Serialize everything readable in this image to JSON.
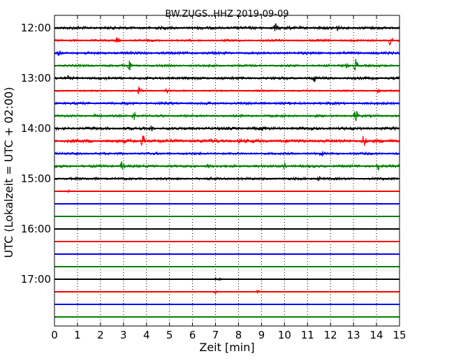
{
  "chart_data": {
    "type": "line",
    "title": "BW.ZUGS..HHZ 2019-09-09",
    "xlabel": "Zeit  [min]",
    "ylabel": "UTC (Lokalzeit = UTC + 02:00)",
    "xlim": [
      0,
      15
    ],
    "x_ticks": [
      "0",
      "1",
      "2",
      "3",
      "4",
      "5",
      "6",
      "7",
      "8",
      "9",
      "10",
      "11",
      "12",
      "13",
      "14",
      "15"
    ],
    "y_tick_labels": [
      "12:00",
      "13:00",
      "14:00",
      "15:00",
      "16:00",
      "17:00"
    ],
    "grid": "vertical dotted",
    "row_interval_minutes": 15,
    "colors": [
      "#000000",
      "#ff0000",
      "#0000ff",
      "#008000"
    ],
    "series": [
      {
        "start": "12:00",
        "noise": 2.2,
        "events": [
          [
            9.6,
            6
          ],
          [
            12.3,
            3
          ]
        ]
      },
      {
        "start": "12:15",
        "noise": 1.6,
        "events": [
          [
            2.75,
            9
          ],
          [
            14.6,
            9
          ]
        ]
      },
      {
        "start": "12:30",
        "noise": 2.0,
        "events": [
          [
            0.2,
            3
          ]
        ]
      },
      {
        "start": "12:45",
        "noise": 1.7,
        "events": [
          [
            3.25,
            7
          ],
          [
            13.1,
            10
          ],
          [
            12.7,
            3
          ]
        ]
      },
      {
        "start": "13:00",
        "noise": 2.0,
        "events": [
          [
            11.3,
            4
          ],
          [
            0.6,
            2
          ]
        ]
      },
      {
        "start": "13:15",
        "noise": 1.2,
        "events": [
          [
            3.7,
            8
          ],
          [
            4.9,
            3
          ],
          [
            14.1,
            3
          ]
        ]
      },
      {
        "start": "13:30",
        "noise": 1.9,
        "events": []
      },
      {
        "start": "13:45",
        "noise": 1.7,
        "events": [
          [
            3.45,
            7
          ],
          [
            13.1,
            9
          ],
          [
            1.8,
            3
          ]
        ]
      },
      {
        "start": "14:00",
        "noise": 2.2,
        "events": [
          [
            4.2,
            4
          ],
          [
            9.1,
            3
          ]
        ]
      },
      {
        "start": "14:15",
        "noise": 2.6,
        "events": [
          [
            3.85,
            8
          ],
          [
            13.45,
            9
          ],
          [
            8.1,
            3
          ]
        ]
      },
      {
        "start": "14:30",
        "noise": 1.8,
        "events": [
          [
            11.6,
            3
          ]
        ]
      },
      {
        "start": "14:45",
        "noise": 2.0,
        "events": [
          [
            2.95,
            8
          ],
          [
            14.05,
            9
          ],
          [
            10.0,
            4
          ],
          [
            6.7,
            3
          ]
        ]
      },
      {
        "start": "15:00",
        "noise": 1.8,
        "events": [
          [
            11.5,
            4
          ]
        ]
      },
      {
        "start": "15:15",
        "noise": 0.3,
        "events": [
          [
            0.6,
            2
          ]
        ]
      },
      {
        "start": "15:30",
        "noise": 0.3,
        "events": []
      },
      {
        "start": "15:45",
        "noise": 0.3,
        "events": []
      },
      {
        "start": "16:00",
        "noise": 0.3,
        "events": []
      },
      {
        "start": "16:15",
        "noise": 0.3,
        "events": []
      },
      {
        "start": "16:30",
        "noise": 0.3,
        "events": []
      },
      {
        "start": "16:45",
        "noise": 0.3,
        "events": []
      },
      {
        "start": "17:00",
        "noise": 0.3,
        "events": [
          [
            7.0,
            2
          ],
          [
            7.2,
            2
          ]
        ]
      },
      {
        "start": "17:15",
        "noise": 0.3,
        "events": [
          [
            7.0,
            3
          ],
          [
            8.85,
            3
          ]
        ]
      },
      {
        "start": "17:30",
        "noise": 0.3,
        "events": []
      },
      {
        "start": "17:45",
        "noise": 0.3,
        "events": []
      }
    ]
  }
}
